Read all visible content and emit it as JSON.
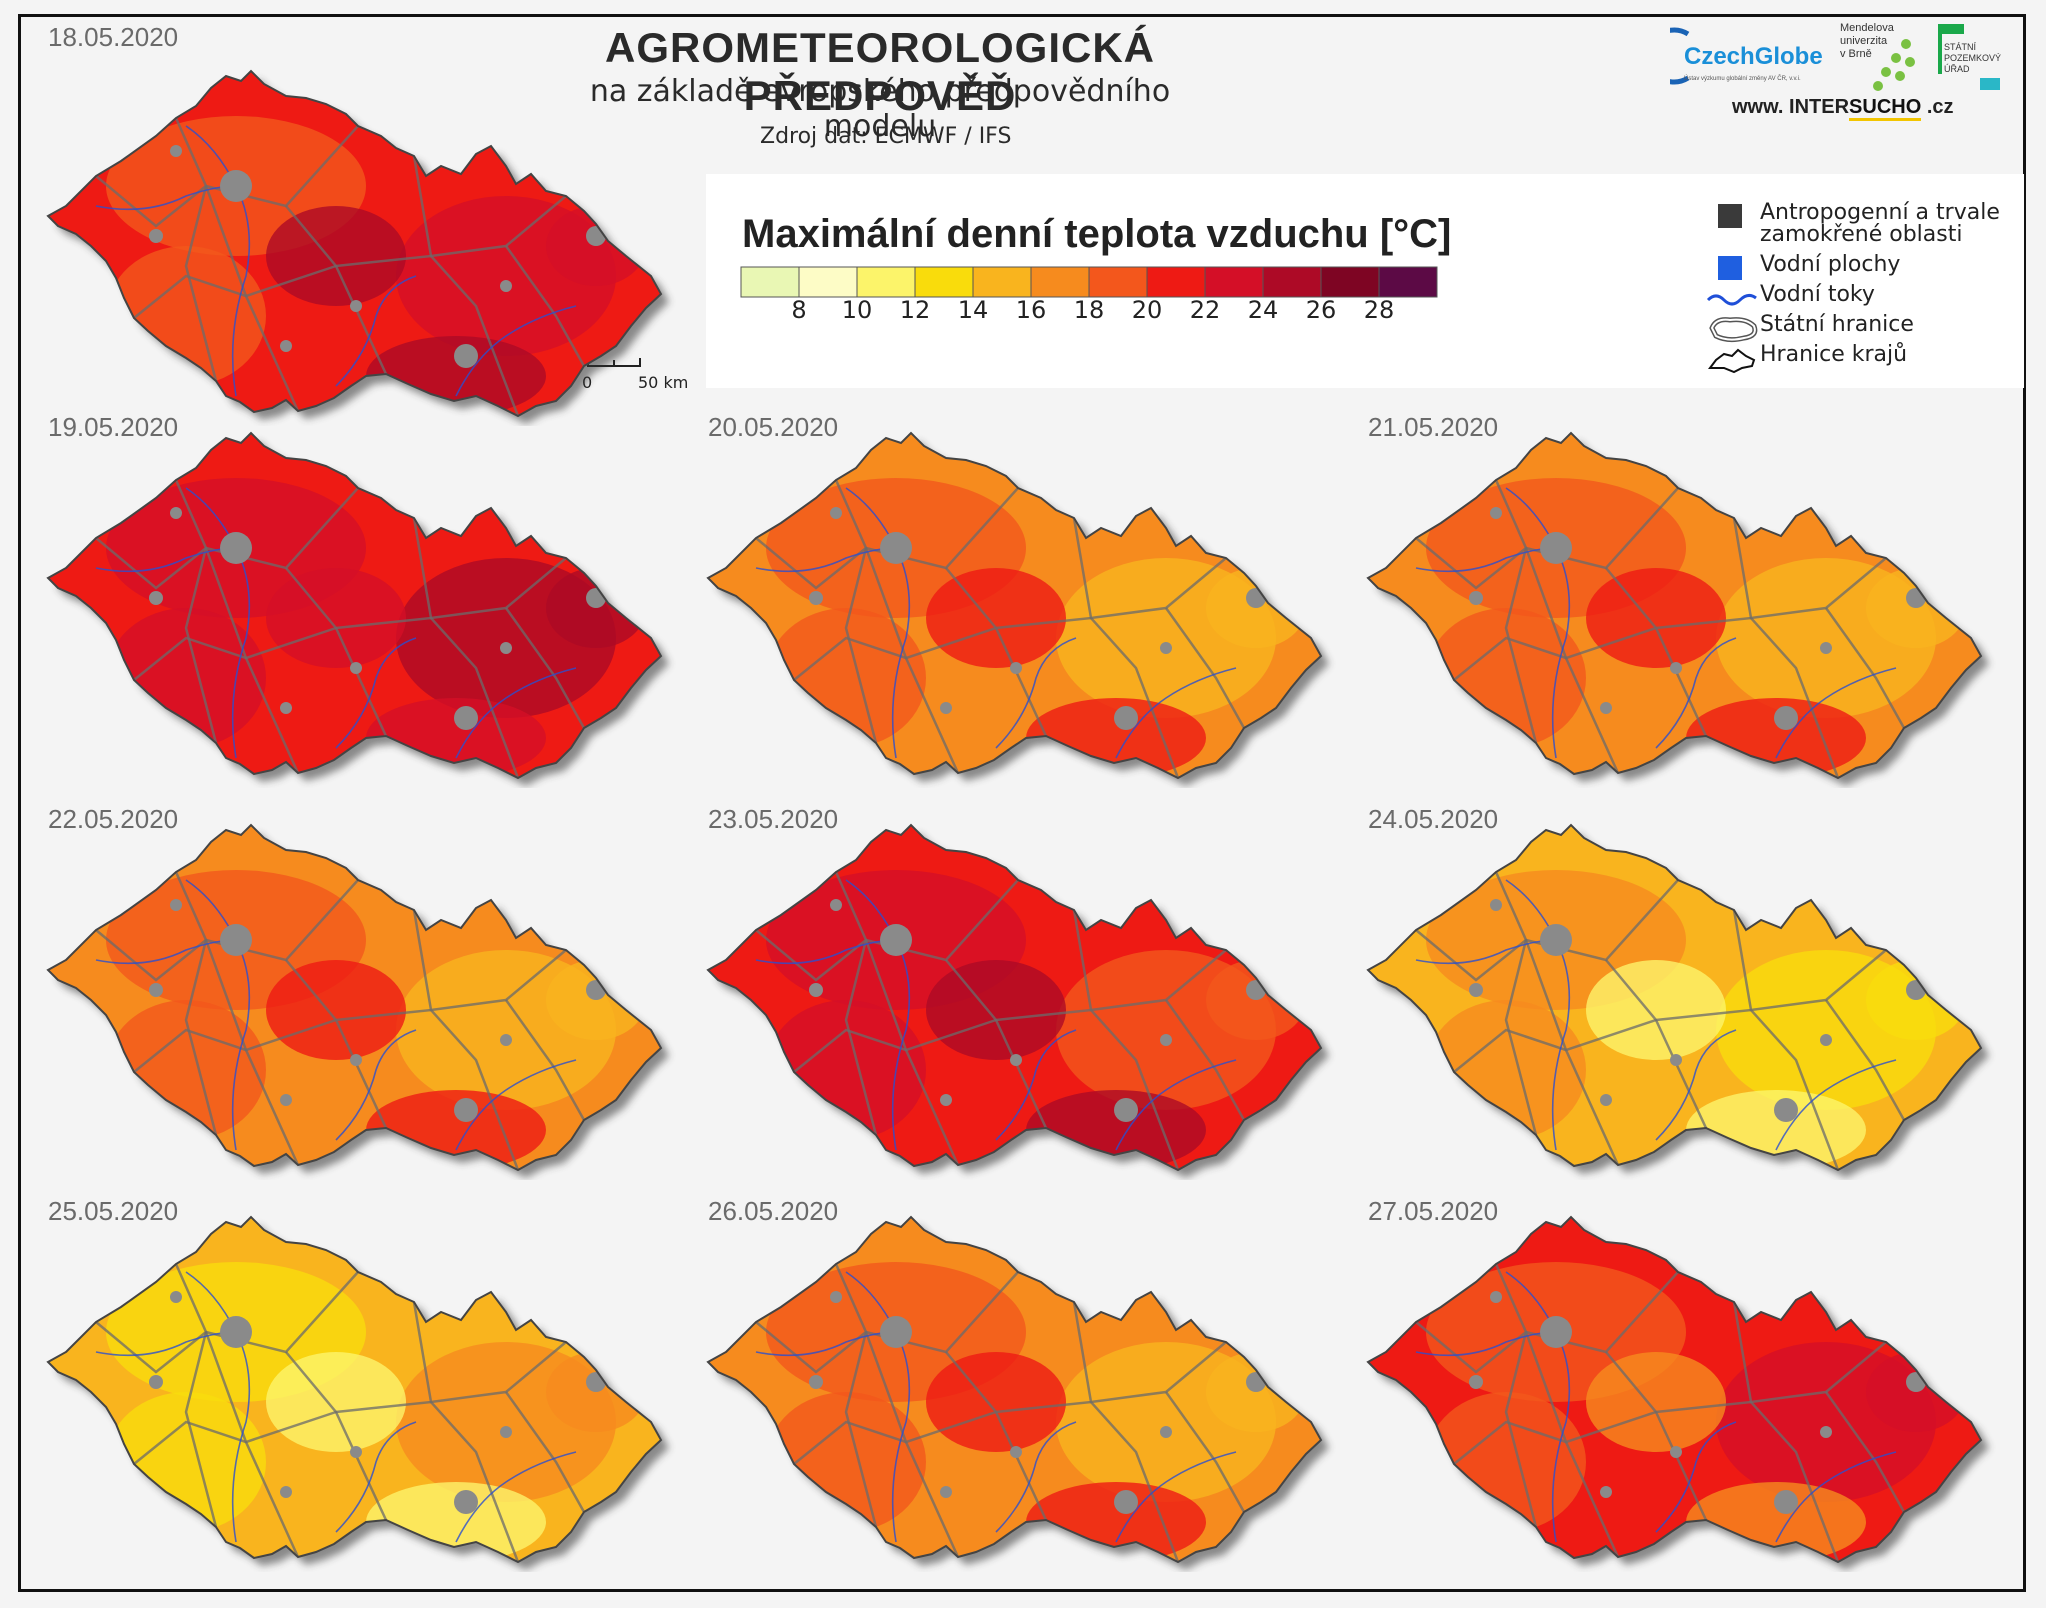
{
  "header": {
    "title": "AGROMETEOROLOGICKÁ  PŘEDPOVĚĎ",
    "subtitle": "na základě evropského předpovědního modelu",
    "source": "Zdroj dat: ECMWF / IFS"
  },
  "logos": {
    "czechglobe": "CzechGlobe",
    "czechglobe_tagline": "Ústav výzkumu globální změny AV ČR, v.v.i.",
    "mendel_line1": "Mendelova",
    "mendel_line2": "univerzita",
    "mendel_line3": "v Brně",
    "spu_line1": "STÁTNÍ",
    "spu_line2": "POZEMKOVÝ",
    "spu_line3": "ÚŘAD",
    "website_prefix": "www. INTER",
    "website_accent": "SUCHO",
    "website_suffix": " .cz"
  },
  "legend": {
    "title": "Maximální denní teplota vzduchu [°C]",
    "colors": [
      "#e9f7b4",
      "#fdfcc6",
      "#fcf46a",
      "#f9dc0c",
      "#f9b41e",
      "#f68b1e",
      "#f3571c",
      "#ee1a14",
      "#d40f27",
      "#ad0a26",
      "#7e0523",
      "#5c0a45"
    ],
    "ticks": [
      "8",
      "10",
      "12",
      "14",
      "16",
      "18",
      "20",
      "22",
      "24",
      "26",
      "28"
    ],
    "items": [
      {
        "label": "Antropogenní a trvale",
        "label2": "zamokřené oblasti",
        "color": "#3a3a3a"
      },
      {
        "label": "Vodní plochy",
        "color": "#1f5fe0"
      },
      {
        "label": "Vodní toky",
        "color": "#1f4fd8"
      },
      {
        "label": "Státní hranice",
        "color": "#555555"
      },
      {
        "label": "Hranice krajů",
        "color": "#111111"
      }
    ]
  },
  "scale": {
    "zero": "0",
    "fifty": "50 km"
  },
  "maps": [
    {
      "date": "18.05.2020",
      "base": "#ee1a14",
      "patch1": "#f3571c",
      "patch2": "#d40f27",
      "patch3": "#ad0a26"
    },
    {
      "date": "19.05.2020",
      "base": "#ee1a14",
      "patch1": "#d40f27",
      "patch2": "#ad0a26",
      "patch3": "#d40f27"
    },
    {
      "date": "20.05.2020",
      "base": "#f68b1e",
      "patch1": "#f3571c",
      "patch2": "#f9b41e",
      "patch3": "#ee1a14"
    },
    {
      "date": "21.05.2020",
      "base": "#f68b1e",
      "patch1": "#f3571c",
      "patch2": "#f9b41e",
      "patch3": "#ee1a14"
    },
    {
      "date": "22.05.2020",
      "base": "#f68b1e",
      "patch1": "#f3571c",
      "patch2": "#f9b41e",
      "patch3": "#ee1a14"
    },
    {
      "date": "23.05.2020",
      "base": "#ee1a14",
      "patch1": "#d40f27",
      "patch2": "#f3571c",
      "patch3": "#ad0a26"
    },
    {
      "date": "24.05.2020",
      "base": "#f9b41e",
      "patch1": "#f68b1e",
      "patch2": "#f9dc0c",
      "patch3": "#fcf46a"
    },
    {
      "date": "25.05.2020",
      "base": "#f9b41e",
      "patch1": "#f9dc0c",
      "patch2": "#f68b1e",
      "patch3": "#fcf46a"
    },
    {
      "date": "26.05.2020",
      "base": "#f68b1e",
      "patch1": "#f3571c",
      "patch2": "#f9b41e",
      "patch3": "#ee1a14"
    },
    {
      "date": "27.05.2020",
      "base": "#ee1a14",
      "patch1": "#f3571c",
      "patch2": "#d40f27",
      "patch3": "#f68b1e"
    }
  ]
}
